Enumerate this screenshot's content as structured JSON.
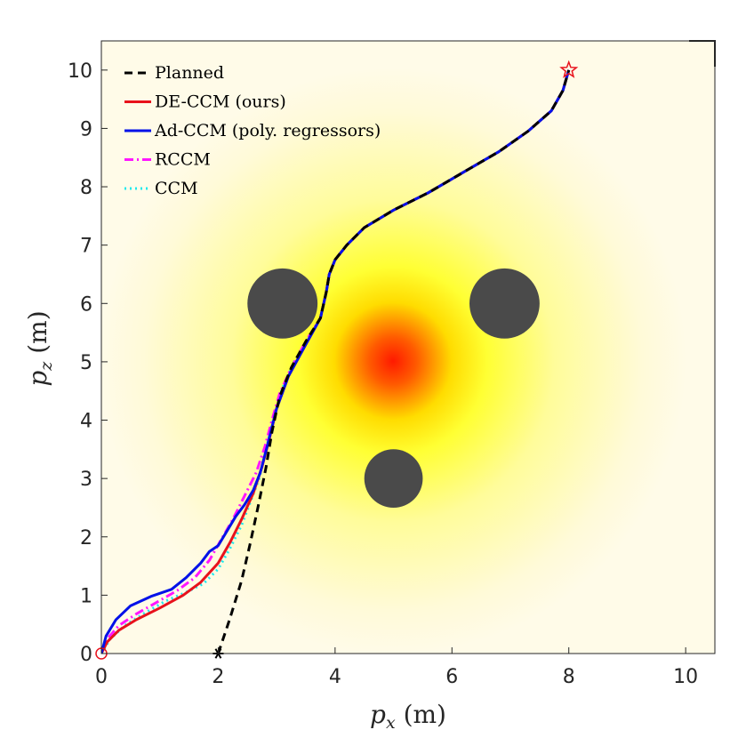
{
  "chart_data": {
    "type": "line",
    "xlabel": "p_x (m)",
    "ylabel": "p_z (m)",
    "xlim": [
      0,
      10.5
    ],
    "ylim": [
      0,
      10.5
    ],
    "xticks": [
      "0",
      "2",
      "4",
      "6",
      "8",
      "10"
    ],
    "yticks": [
      "0",
      "1",
      "2",
      "3",
      "4",
      "5",
      "6",
      "7",
      "8",
      "9",
      "10"
    ],
    "grid": false,
    "legend_position": "top-left",
    "background_field": {
      "center": [
        5,
        5
      ],
      "peak_color": "#ff1a00",
      "mid_color": "#ffff33",
      "base_color": "#fffdee"
    },
    "obstacles": [
      {
        "x": 3.1,
        "y": 6.0,
        "r": 0.6
      },
      {
        "x": 6.9,
        "y": 6.0,
        "r": 0.6
      },
      {
        "x": 5.0,
        "y": 3.0,
        "r": 0.5
      }
    ],
    "obstacle_color": "#4a4a4a",
    "markers": [
      {
        "name": "start",
        "x": 0,
        "y": 0,
        "shape": "circle",
        "color": "#e8121c"
      },
      {
        "name": "planned-start",
        "x": 2.0,
        "y": 0.0,
        "shape": "asterisk",
        "color": "#000000"
      },
      {
        "name": "goal",
        "x": 8.0,
        "y": 10.0,
        "shape": "star",
        "color": "#e8121c"
      }
    ],
    "series": [
      {
        "name": "Planned",
        "color": "#000000",
        "dash": "9,6",
        "width": 3,
        "x": [
          2.0,
          2.2,
          2.4,
          2.55,
          2.7,
          2.82,
          2.92,
          3.05,
          3.25,
          3.5,
          3.75,
          3.85,
          3.9,
          4.0,
          4.2,
          4.5,
          5.0,
          5.6,
          6.2,
          6.8,
          7.3,
          7.7,
          7.9,
          8.0
        ],
        "y": [
          0.0,
          0.6,
          1.25,
          1.9,
          2.6,
          3.2,
          3.8,
          4.4,
          4.9,
          5.35,
          5.75,
          6.2,
          6.5,
          6.75,
          7.0,
          7.3,
          7.6,
          7.9,
          8.25,
          8.6,
          8.95,
          9.3,
          9.65,
          10.0
        ]
      },
      {
        "name": "DE-CCM (ours)",
        "color": "#e8121c",
        "dash": "",
        "width": 3,
        "x": [
          0,
          0.1,
          0.3,
          0.6,
          1.0,
          1.4,
          1.7,
          2.0,
          2.2,
          2.4,
          2.6,
          2.75,
          2.88,
          3.0,
          3.2,
          3.5,
          3.75,
          3.85,
          3.9,
          4.0,
          4.2,
          4.5,
          5.0,
          5.6,
          6.2,
          6.8,
          7.3,
          7.7,
          7.9,
          8.0
        ],
        "y": [
          0,
          0.2,
          0.4,
          0.58,
          0.78,
          1.0,
          1.22,
          1.55,
          1.9,
          2.3,
          2.75,
          3.2,
          3.7,
          4.2,
          4.75,
          5.3,
          5.75,
          6.2,
          6.5,
          6.75,
          7.0,
          7.3,
          7.6,
          7.9,
          8.25,
          8.6,
          8.95,
          9.3,
          9.65,
          10.0
        ]
      },
      {
        "name": "Ad-CCM (poly. regressors)",
        "color": "#0011e8",
        "dash": "",
        "width": 3,
        "x": [
          0,
          0.08,
          0.25,
          0.5,
          0.85,
          1.2,
          1.45,
          1.7,
          1.85,
          2.0,
          2.15,
          2.3,
          2.45,
          2.6,
          2.72,
          2.85,
          3.0,
          3.2,
          3.5,
          3.75,
          3.85,
          3.9,
          4.0,
          4.2,
          4.5,
          5.0,
          5.6,
          6.2,
          6.8,
          7.3,
          7.7,
          7.9,
          8.0
        ],
        "y": [
          0,
          0.3,
          0.58,
          0.82,
          0.98,
          1.1,
          1.3,
          1.55,
          1.75,
          1.85,
          2.1,
          2.35,
          2.55,
          2.8,
          3.1,
          3.6,
          4.2,
          4.75,
          5.3,
          5.75,
          6.2,
          6.5,
          6.75,
          7.0,
          7.3,
          7.6,
          7.9,
          8.25,
          8.6,
          8.95,
          9.3,
          9.65,
          10.0
        ]
      },
      {
        "name": "RCCM",
        "color": "#ff16ff",
        "dash": "10,4,2,4",
        "width": 3,
        "x": [
          0,
          0.1,
          0.3,
          0.6,
          0.95,
          1.3,
          1.6,
          1.85,
          2.05,
          2.25,
          2.45,
          2.65,
          2.8,
          2.92,
          3.05,
          3.25,
          3.5,
          3.75,
          3.85,
          3.9,
          4.0,
          4.2,
          4.5,
          5.0,
          5.6,
          6.2,
          6.8,
          7.3,
          7.7,
          7.9,
          8.0
        ],
        "y": [
          0,
          0.25,
          0.48,
          0.68,
          0.88,
          1.08,
          1.3,
          1.6,
          1.95,
          2.3,
          2.7,
          3.1,
          3.55,
          4.0,
          4.45,
          4.9,
          5.35,
          5.75,
          6.2,
          6.5,
          6.75,
          7.0,
          7.3,
          7.6,
          7.9,
          8.25,
          8.6,
          8.95,
          9.3,
          9.65,
          10.0
        ]
      },
      {
        "name": "CCM",
        "color": "#1fe8ee",
        "dash": "2,4",
        "width": 3,
        "x": [
          0,
          0.15,
          0.4,
          0.75,
          1.1,
          1.45,
          1.75,
          2.0,
          2.2,
          2.4,
          2.55,
          2.7,
          2.82,
          2.95,
          3.1,
          3.3,
          3.55,
          3.75,
          3.85,
          3.9,
          4.0,
          4.2,
          4.5,
          5.0,
          5.6,
          6.2,
          6.8,
          7.3,
          7.7,
          7.9,
          8.0
        ],
        "y": [
          0,
          0.25,
          0.48,
          0.7,
          0.9,
          1.05,
          1.2,
          1.45,
          1.8,
          2.2,
          2.6,
          3.0,
          3.5,
          4.05,
          4.55,
          5.0,
          5.4,
          5.75,
          6.2,
          6.5,
          6.75,
          7.0,
          7.3,
          7.6,
          7.9,
          8.25,
          8.6,
          8.95,
          9.3,
          9.65,
          10.0
        ]
      }
    ]
  }
}
